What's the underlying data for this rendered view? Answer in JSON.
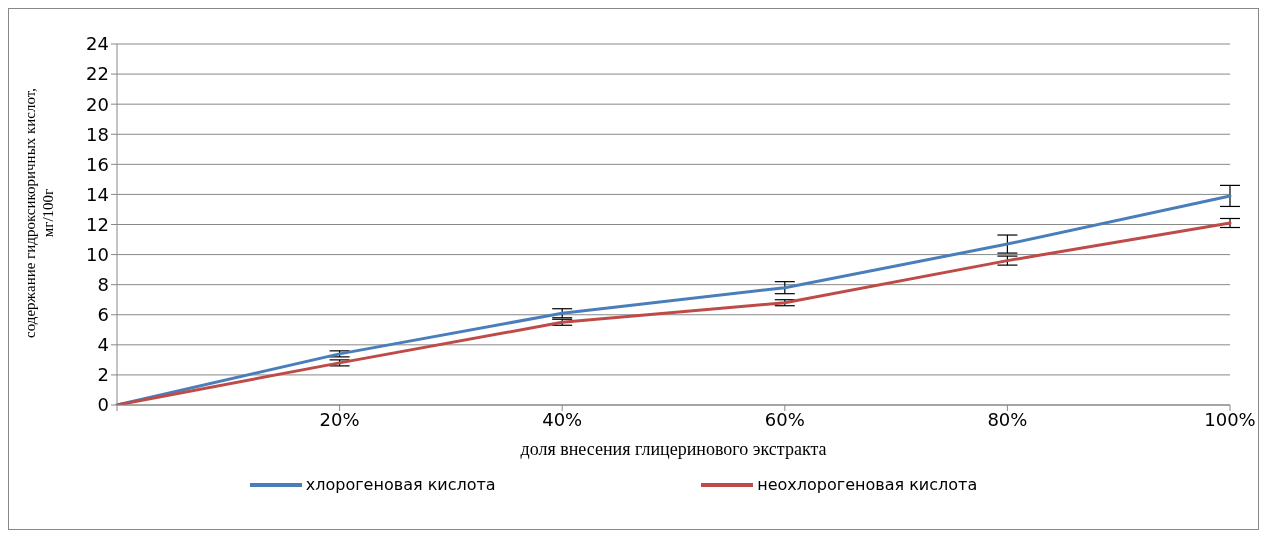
{
  "chart_data": {
    "type": "line",
    "xlabel": "доля внесения глицеринового экстракта",
    "ylabel": "содержание гидроксикоричных кислот, мг/100г",
    "categories": [
      null,
      "20%",
      "40%",
      "60%",
      "80%",
      "100%"
    ],
    "series": [
      {
        "name": "хлорогеновая кислота",
        "color": "#4a7ebb",
        "values": [
          0,
          3.4,
          6.1,
          7.8,
          10.7,
          13.9
        ],
        "errors": [
          null,
          0.2,
          0.3,
          0.4,
          0.6,
          0.7
        ]
      },
      {
        "name": "неохлорогеновая кислота",
        "color": "#be4b48",
        "values": [
          0,
          2.8,
          5.5,
          6.8,
          9.6,
          12.1
        ],
        "errors": [
          null,
          0.2,
          0.2,
          0.2,
          0.3,
          0.3
        ]
      }
    ],
    "ylim": [
      0,
      24
    ],
    "yticks": [
      0,
      2,
      4,
      6,
      8,
      10,
      12,
      14,
      16,
      18,
      20,
      22,
      24
    ],
    "grid": "y",
    "legend": "bottom",
    "marker": "none",
    "line_style": "solid"
  }
}
